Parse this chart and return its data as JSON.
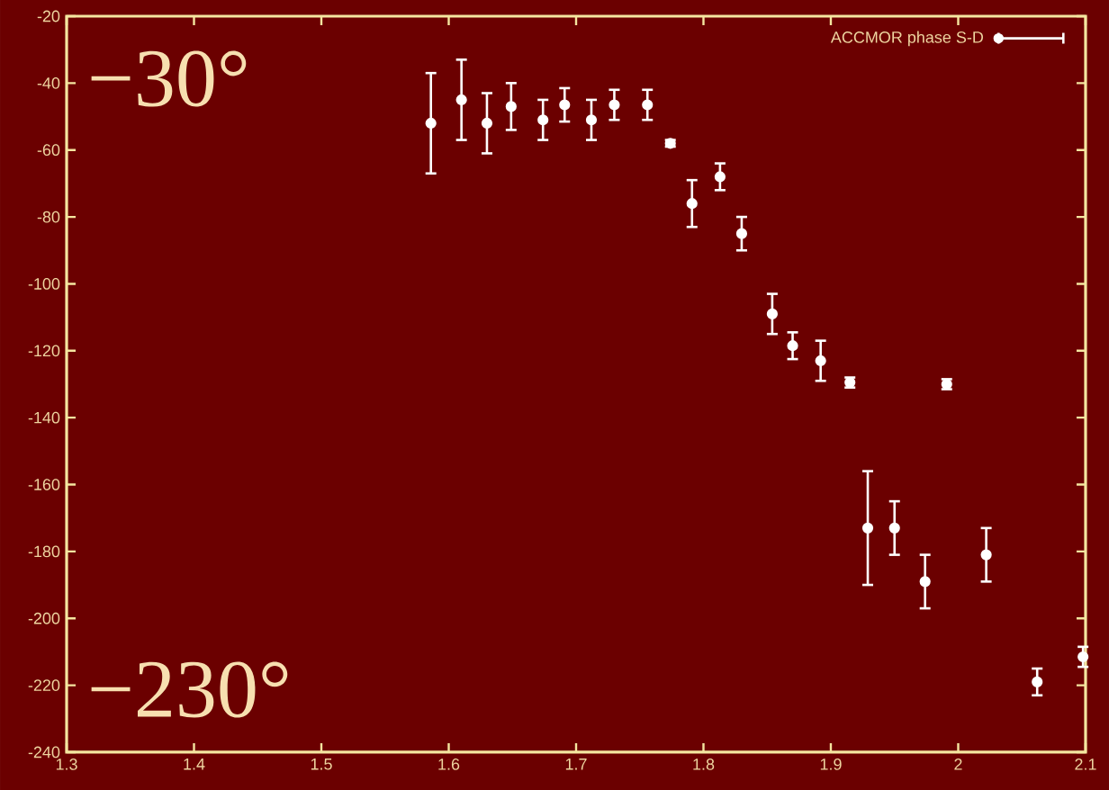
{
  "chart_data": {
    "type": "scatter",
    "x": [
      1.586,
      1.61,
      1.63,
      1.649,
      1.674,
      1.691,
      1.712,
      1.73,
      1.756,
      1.774,
      1.791,
      1.813,
      1.83,
      1.854,
      1.87,
      1.892,
      1.915,
      1.929,
      1.95,
      1.974,
      1.991,
      2.022,
      2.062,
      2.098
    ],
    "series": [
      {
        "name": "ACCMOR phase S-D",
        "color": "#ffffff",
        "values": [
          -52,
          -45,
          -52,
          -47,
          -51,
          -46.5,
          -51,
          -46.5,
          -46.5,
          -58,
          -76,
          -68,
          -85,
          -109,
          -118.5,
          -123,
          -129.5,
          -173,
          -173,
          -189,
          -130,
          -181,
          -219,
          -211.5
        ],
        "errors": [
          15,
          12,
          9,
          7,
          6,
          5,
          6,
          4.5,
          4.5,
          1,
          7,
          4,
          5,
          6,
          4,
          6,
          1.5,
          17,
          8,
          8,
          1.5,
          8,
          4,
          3
        ]
      }
    ],
    "xlim": [
      1.3,
      2.1
    ],
    "ylim": [
      -240,
      -20
    ],
    "xticks": [
      1.3,
      1.4,
      1.5,
      1.6,
      1.7,
      1.8,
      1.9,
      2,
      2.1
    ],
    "yticks": [
      -240,
      -220,
      -200,
      -180,
      -160,
      -140,
      -120,
      -100,
      -80,
      -60,
      -40,
      -20
    ],
    "legend": "top right",
    "marker": "circle",
    "grid": false,
    "annotations": [
      "−30°",
      "−230°"
    ]
  }
}
